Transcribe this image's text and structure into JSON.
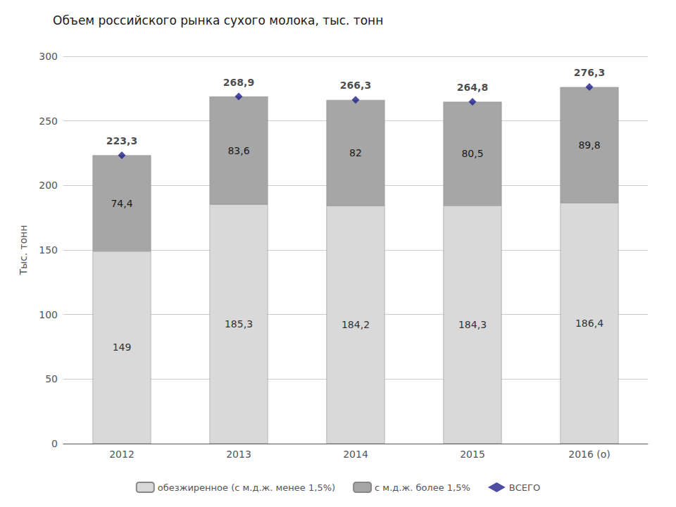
{
  "chart_data": {
    "type": "bar",
    "title": "Объем российского рынка сухого молока, тыс. тонн",
    "ylabel": "Тыс. тонн",
    "categories": [
      "2012",
      "2013",
      "2014",
      "2015",
      "2016 (о)"
    ],
    "stacked": true,
    "data_labels": true,
    "grid": true,
    "legend": "bottom",
    "ylim": [
      0,
      300
    ],
    "yticks": [
      0,
      50,
      100,
      150,
      200,
      250,
      300
    ],
    "series": [
      {
        "name": "обезжиренное (с м.д.ж. менее 1,5%)",
        "type": "bar",
        "color": "#d9d9d9",
        "values": [
          149.0,
          185.3,
          184.2,
          184.3,
          186.4
        ],
        "value_labels": [
          "149",
          "185,3",
          "184,2",
          "184,3",
          "186,4"
        ]
      },
      {
        "name": "с м.д.ж. более 1,5%",
        "type": "bar",
        "color": "#a6a6a6",
        "values": [
          74.4,
          83.6,
          82.0,
          80.5,
          89.8
        ],
        "value_labels": [
          "74,4",
          "83,6",
          "82",
          "80,5",
          "89,8"
        ]
      },
      {
        "name": "ВСЕГО",
        "type": "scatter",
        "marker": "diamond",
        "color": "#1f1f8c",
        "values": [
          223.3,
          268.9,
          266.3,
          264.8,
          276.3
        ],
        "value_labels": [
          "223,3",
          "268,9",
          "266,3",
          "264,8",
          "276,3"
        ]
      }
    ]
  }
}
